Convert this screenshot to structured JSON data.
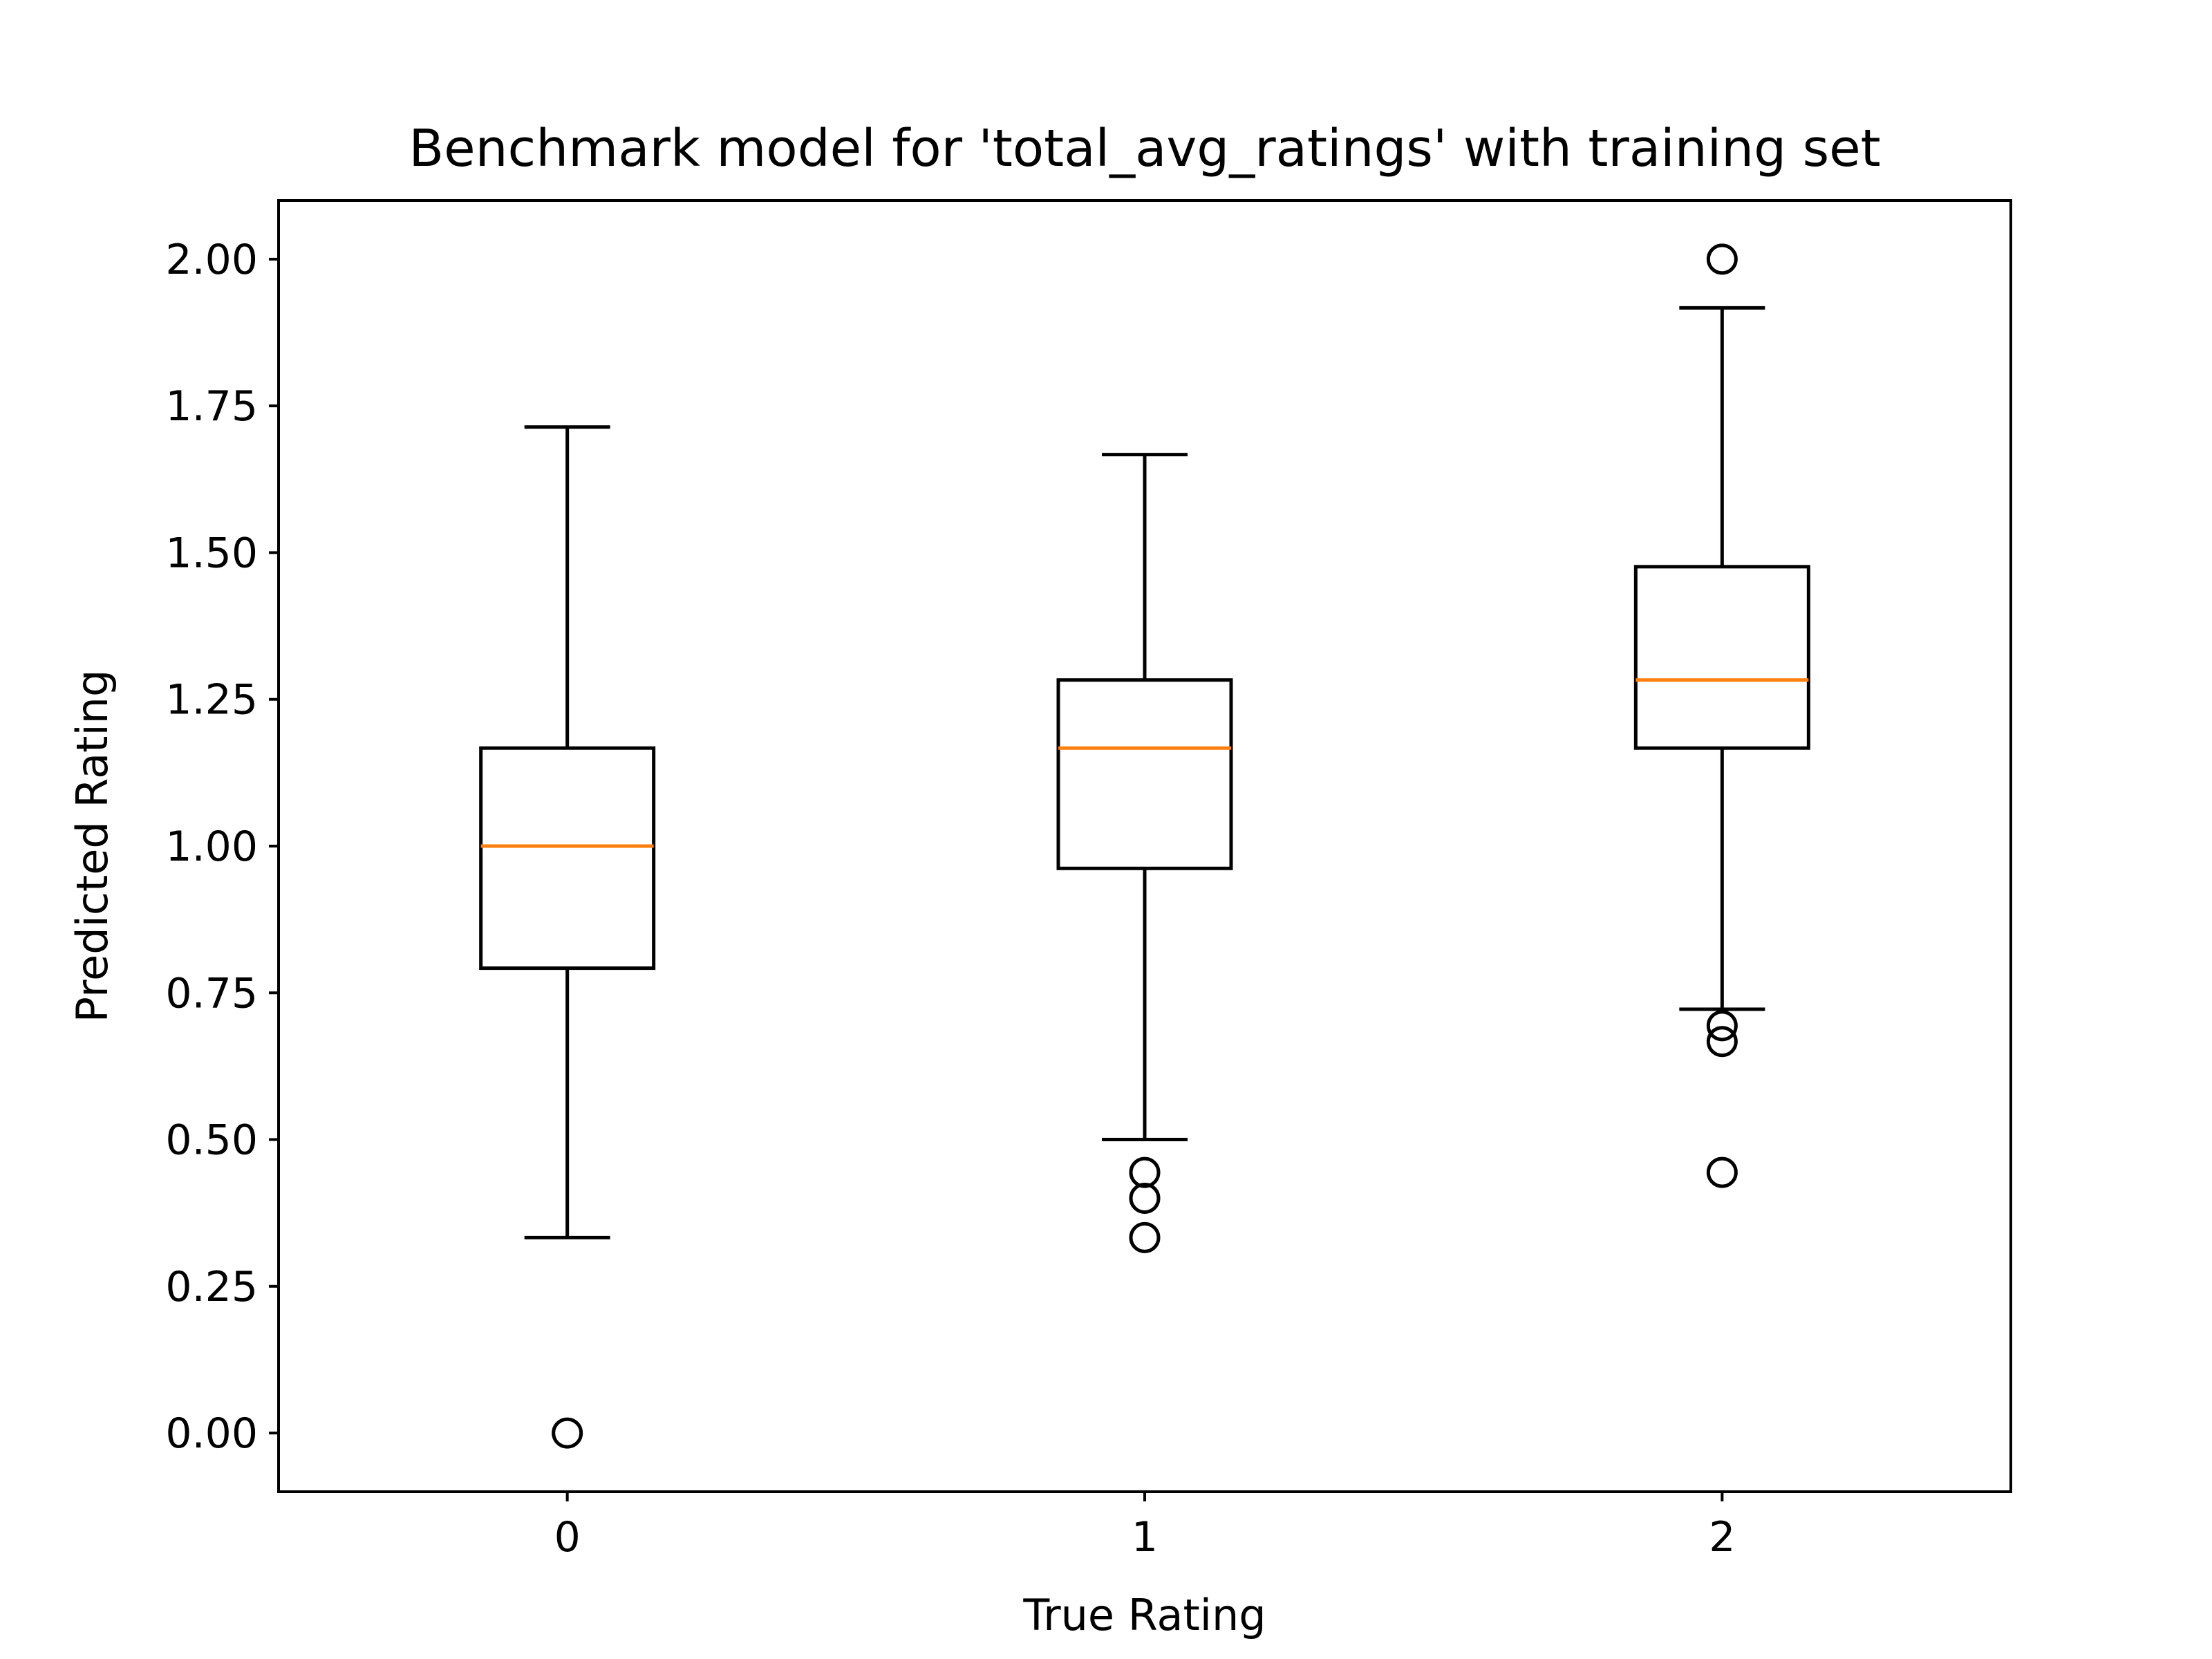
{
  "chart_data": {
    "type": "box",
    "title": "Benchmark model for 'total_avg_ratings' with training set",
    "xlabel": "True Rating",
    "ylabel": "Predicted Rating",
    "categories": [
      "0",
      "1",
      "2"
    ],
    "ylim": [
      -0.1,
      2.1
    ],
    "yticks": [
      "0.00",
      "0.25",
      "0.50",
      "0.75",
      "1.00",
      "1.25",
      "1.50",
      "1.75",
      "2.00"
    ],
    "yticks_values": [
      0,
      0.25,
      0.5,
      0.75,
      1.0,
      1.25,
      1.5,
      1.75,
      2.0
    ],
    "grid": false,
    "median_color": "#ff7f0e",
    "box_color": "#000000",
    "boxes": [
      {
        "category": "0",
        "whisker_low": 0.333,
        "q1": 0.792,
        "median": 1.0,
        "q3": 1.167,
        "whisker_high": 1.714,
        "outliers": [
          0.0
        ]
      },
      {
        "category": "1",
        "whisker_low": 0.5,
        "q1": 0.962,
        "median": 1.167,
        "q3": 1.283,
        "whisker_high": 1.667,
        "outliers": [
          0.444,
          0.4,
          0.333
        ]
      },
      {
        "category": "2",
        "whisker_low": 0.722,
        "q1": 1.167,
        "median": 1.283,
        "q3": 1.476,
        "whisker_high": 1.917,
        "outliers": [
          2.0,
          0.694,
          0.667,
          0.444
        ]
      }
    ]
  }
}
